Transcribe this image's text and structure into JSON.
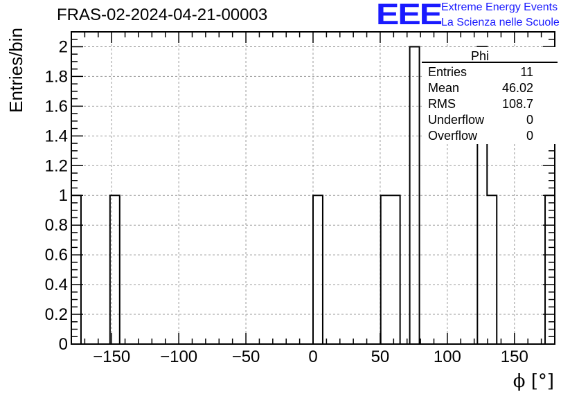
{
  "header": {
    "title": "FRAS-02-2024-04-21-00003",
    "logo_text": "EEE",
    "logo_line1": "Extreme Energy Events",
    "logo_line2": "La Scienza nelle Scuole",
    "logo_color": "#1a1aff"
  },
  "chart_data": {
    "type": "histogram",
    "title": "FRAS-02-2024-04-21-00003",
    "xlabel": "ϕ [°]",
    "ylabel": "Entries/bin",
    "xlim": [
      -180,
      180
    ],
    "ylim": [
      0,
      2.1
    ],
    "bin_width": 7.2,
    "grid": true,
    "xticks": [
      -150,
      -100,
      -50,
      0,
      50,
      100,
      150
    ],
    "xtick_labels": [
      "−150",
      "−100",
      "−50",
      "0",
      "50",
      "100",
      "150"
    ],
    "yticks": [
      0,
      0.2,
      0.4,
      0.6,
      0.8,
      1,
      1.2,
      1.4,
      1.6,
      1.8,
      2
    ],
    "ytick_labels": [
      "0",
      "0.2",
      "0.4",
      "0.6",
      "0.8",
      "1",
      "1.2",
      "1.4",
      "1.6",
      "1.8",
      "2"
    ],
    "bins": [
      {
        "x_low": -180,
        "x_high": -172.8,
        "count": 1
      },
      {
        "x_low": -151.2,
        "x_high": -144,
        "count": 1
      },
      {
        "x_low": 0,
        "x_high": 7.2,
        "count": 1
      },
      {
        "x_low": 50.4,
        "x_high": 57.6,
        "count": 1
      },
      {
        "x_low": 57.6,
        "x_high": 64.8,
        "count": 1
      },
      {
        "x_low": 72,
        "x_high": 79.2,
        "count": 2
      },
      {
        "x_low": 122.4,
        "x_high": 129.6,
        "count": 2
      },
      {
        "x_low": 129.6,
        "x_high": 136.8,
        "count": 1
      },
      {
        "x_low": 172.8,
        "x_high": 180,
        "count": 1
      }
    ],
    "stats_box": {
      "name": "Phi",
      "rows": [
        {
          "label": "Entries",
          "value": "11"
        },
        {
          "label": "Mean",
          "value": "46.02"
        },
        {
          "label": "RMS",
          "value": "108.7"
        },
        {
          "label": "Underflow",
          "value": "0"
        },
        {
          "label": "Overflow",
          "value": "0"
        }
      ]
    }
  }
}
